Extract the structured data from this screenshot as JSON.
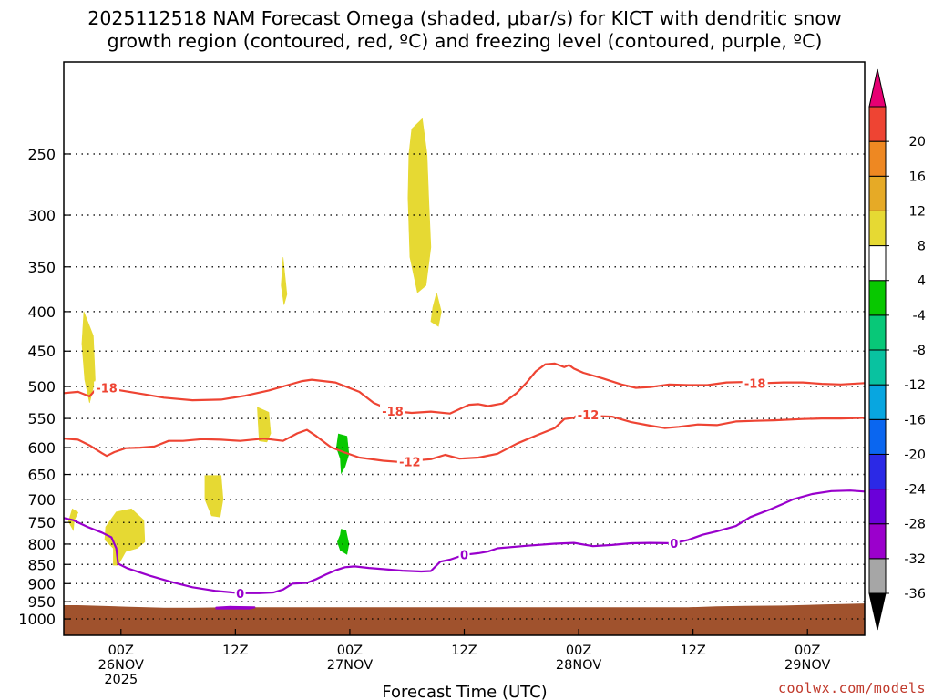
{
  "chart_data": {
    "type": "heatmap",
    "title_lines": [
      "2025112518 NAM Forecast Omega (shaded, μbar/s) for KICT with dendritic snow",
      "growth region (contoured, red, ºC) and freezing level (contoured, purple, ºC)"
    ],
    "xlabel": "Forecast Time (UTC)",
    "ylabel": "",
    "credit": "coolwx.com/models",
    "x_range_hours": [
      -3.5,
      80.5
    ],
    "y_range_hpa": [
      1050,
      190
    ],
    "y_ticks": [
      {
        "value": 250,
        "label": "250"
      },
      {
        "value": 300,
        "label": "300"
      },
      {
        "value": 350,
        "label": "350"
      },
      {
        "value": 400,
        "label": "400"
      },
      {
        "value": 450,
        "label": "450"
      },
      {
        "value": 500,
        "label": "500"
      },
      {
        "value": 550,
        "label": "550"
      },
      {
        "value": 600,
        "label": "600"
      },
      {
        "value": 650,
        "label": "650"
      },
      {
        "value": 700,
        "label": "700"
      },
      {
        "value": 750,
        "label": "750"
      },
      {
        "value": 800,
        "label": "800"
      },
      {
        "value": 850,
        "label": "850"
      },
      {
        "value": 900,
        "label": "900"
      },
      {
        "value": 950,
        "label": "950"
      },
      {
        "value": 1000,
        "label": "1000"
      }
    ],
    "x_ticks": [
      {
        "hour": 2.5,
        "lines": [
          "00Z",
          "26NOV",
          "2025"
        ]
      },
      {
        "hour": 14.5,
        "lines": [
          "12Z"
        ]
      },
      {
        "hour": 26.5,
        "lines": [
          "00Z",
          "27NOV"
        ]
      },
      {
        "hour": 38.5,
        "lines": [
          "12Z"
        ]
      },
      {
        "hour": 50.5,
        "lines": [
          "00Z",
          "28NOV"
        ]
      },
      {
        "hour": 62.5,
        "lines": [
          "12Z"
        ]
      },
      {
        "hour": 74.5,
        "lines": [
          "00Z",
          "29NOV"
        ]
      }
    ],
    "colorbar": {
      "levels": [
        -36,
        -32,
        -28,
        -24,
        -20,
        -16,
        -12,
        -8,
        -4,
        4,
        8,
        12,
        16,
        20
      ],
      "colors": [
        "#a6a6a6",
        "#9b00cc",
        "#6a00d9",
        "#2b29e6",
        "#0a66f0",
        "#08a6e0",
        "#09c2a0",
        "#08c878",
        "#08c800",
        "#ffffff",
        "#e6d933",
        "#e6aa26",
        "#ee8822",
        "#ee4433"
      ],
      "min_arrow_color": "#000000",
      "max_arrow_color": "#e60073"
    },
    "omega_regions": [
      {
        "color": "#e6d933",
        "value_range": [
          4,
          8
        ],
        "points": [
          [
            -1.4,
            400
          ],
          [
            -0.4,
            430
          ],
          [
            -0.2,
            490
          ],
          [
            -0.8,
            525
          ],
          [
            -1.3,
            490
          ],
          [
            -1.6,
            440
          ]
        ]
      },
      {
        "color": "#e6d933",
        "value_range": [
          4,
          8
        ],
        "points": [
          [
            -2.6,
            720
          ],
          [
            -2.0,
            728
          ],
          [
            -2.4,
            745
          ],
          [
            -2.5,
            768
          ],
          [
            -3.0,
            748
          ]
        ]
      },
      {
        "color": "#e6d933",
        "value_range": [
          4,
          8
        ],
        "points": [
          [
            0.9,
            760
          ],
          [
            2.0,
            727
          ],
          [
            3.6,
            720
          ],
          [
            4.9,
            745
          ],
          [
            5.0,
            795
          ],
          [
            4.2,
            810
          ],
          [
            3.0,
            818
          ],
          [
            2.2,
            852
          ],
          [
            1.7,
            852
          ],
          [
            1.7,
            810
          ],
          [
            0.8,
            790
          ]
        ]
      },
      {
        "color": "#e6d933",
        "value_range": [
          4,
          8
        ],
        "points": [
          [
            11.3,
            652
          ],
          [
            13.0,
            652
          ],
          [
            13.2,
            700
          ],
          [
            12.9,
            738
          ],
          [
            12.0,
            735
          ],
          [
            11.3,
            700
          ]
        ]
      },
      {
        "color": "#e6d933",
        "value_range": [
          4,
          8
        ],
        "points": [
          [
            16.8,
            532
          ],
          [
            18.0,
            540
          ],
          [
            18.2,
            575
          ],
          [
            17.8,
            590
          ],
          [
            17.0,
            588
          ]
        ]
      },
      {
        "color": "#e6d933",
        "value_range": [
          4,
          8
        ],
        "points": [
          [
            19.5,
            340
          ],
          [
            19.9,
            380
          ],
          [
            19.6,
            392
          ],
          [
            19.3,
            370
          ]
        ]
      },
      {
        "color": "#e6d933",
        "value_range": [
          4,
          8
        ],
        "points": [
          [
            33.0,
            232
          ],
          [
            34.1,
            225
          ],
          [
            34.6,
            250
          ],
          [
            34.8,
            290
          ],
          [
            35.0,
            330
          ],
          [
            34.5,
            370
          ],
          [
            33.6,
            378
          ],
          [
            32.8,
            340
          ],
          [
            32.6,
            285
          ],
          [
            32.7,
            250
          ]
        ]
      },
      {
        "color": "#e6d933",
        "value_range": [
          4,
          8
        ],
        "points": [
          [
            35.6,
            378
          ],
          [
            36.1,
            400
          ],
          [
            35.8,
            418
          ],
          [
            35.0,
            412
          ],
          [
            35.2,
            395
          ]
        ]
      },
      {
        "color": "#08c800",
        "value_range": [
          -8,
          -4
        ],
        "points": [
          [
            25.3,
            576
          ],
          [
            26.2,
            580
          ],
          [
            26.4,
            612
          ],
          [
            26.0,
            635
          ],
          [
            25.6,
            648
          ],
          [
            25.5,
            620
          ],
          [
            25.1,
            600
          ]
        ]
      },
      {
        "color": "#08c800",
        "value_range": [
          -8,
          -4
        ],
        "points": [
          [
            25.6,
            765
          ],
          [
            26.1,
            768
          ],
          [
            26.4,
            800
          ],
          [
            26.2,
            825
          ],
          [
            25.5,
            815
          ],
          [
            25.2,
            795
          ],
          [
            25.5,
            778
          ]
        ]
      }
    ],
    "terrain": {
      "color": "#a0522d",
      "points": [
        [
          -3.5,
          960
        ],
        [
          -2.0,
          960
        ],
        [
          3.0,
          964
        ],
        [
          7.0,
          967
        ],
        [
          10.0,
          967
        ],
        [
          14.0,
          966
        ],
        [
          30.0,
          966
        ],
        [
          50.0,
          966
        ],
        [
          58.0,
          966
        ],
        [
          62.0,
          966
        ],
        [
          65.0,
          963
        ],
        [
          68.0,
          962
        ],
        [
          72.0,
          961
        ],
        [
          76.0,
          958
        ],
        [
          80.5,
          955
        ],
        [
          80.5,
          1050
        ],
        [
          -3.5,
          1050
        ]
      ]
    },
    "dgz_contours": [
      {
        "level": -18,
        "label": "-18",
        "color": "#ee4433",
        "label_positions": [
          [
            1.0,
            502
          ],
          [
            31.0,
            538
          ],
          [
            69.0,
            495
          ]
        ],
        "points": [
          [
            -3.5,
            510
          ],
          [
            -2.0,
            508
          ],
          [
            -0.8,
            515
          ],
          [
            0.0,
            502
          ],
          [
            1.0,
            502
          ],
          [
            2.5,
            506
          ],
          [
            5.0,
            512
          ],
          [
            7.0,
            517
          ],
          [
            10.0,
            521
          ],
          [
            13.0,
            520
          ],
          [
            15.5,
            514
          ],
          [
            18.0,
            506
          ],
          [
            20.0,
            498
          ],
          [
            21.5,
            492
          ],
          [
            22.5,
            490
          ],
          [
            25.0,
            494
          ],
          [
            27.5,
            508
          ],
          [
            29.0,
            525
          ],
          [
            31.0,
            538
          ],
          [
            33.0,
            541
          ],
          [
            35.0,
            539
          ],
          [
            37.0,
            542
          ],
          [
            39.0,
            528
          ],
          [
            40.0,
            527
          ],
          [
            41.0,
            530
          ],
          [
            42.5,
            526
          ],
          [
            44.0,
            510
          ],
          [
            45.0,
            495
          ],
          [
            46.0,
            478
          ],
          [
            47.0,
            468
          ],
          [
            48.0,
            467
          ],
          [
            49.0,
            472
          ],
          [
            49.5,
            469
          ],
          [
            50.0,
            474
          ],
          [
            51.0,
            480
          ],
          [
            53.0,
            488
          ],
          [
            55.0,
            497
          ],
          [
            56.5,
            502
          ],
          [
            58.0,
            501
          ],
          [
            60.0,
            497
          ],
          [
            62.0,
            498
          ],
          [
            64.0,
            498
          ],
          [
            66.0,
            494
          ],
          [
            69.0,
            493
          ],
          [
            70.0,
            495
          ],
          [
            72.0,
            494
          ],
          [
            74.0,
            494
          ],
          [
            76.0,
            496
          ],
          [
            78.0,
            497
          ],
          [
            80.5,
            495
          ]
        ]
      },
      {
        "level": -12,
        "label": "-12",
        "color": "#ee4433",
        "label_positions": [
          [
            32.8,
            626
          ],
          [
            51.5,
            544
          ]
        ],
        "points": [
          [
            -3.5,
            584
          ],
          [
            -2.0,
            586
          ],
          [
            -0.8,
            596
          ],
          [
            0.5,
            610
          ],
          [
            1.0,
            615
          ],
          [
            1.8,
            608
          ],
          [
            3.0,
            601
          ],
          [
            4.5,
            600
          ],
          [
            6.0,
            598
          ],
          [
            7.5,
            588
          ],
          [
            9.0,
            588
          ],
          [
            11.0,
            585
          ],
          [
            13.0,
            586
          ],
          [
            15.0,
            588
          ],
          [
            17.5,
            584
          ],
          [
            19.5,
            588
          ],
          [
            21.0,
            575
          ],
          [
            22.0,
            569
          ],
          [
            23.0,
            580
          ],
          [
            24.5,
            599
          ],
          [
            26.0,
            609
          ],
          [
            27.5,
            618
          ],
          [
            30.0,
            624
          ],
          [
            31.5,
            626
          ],
          [
            35.0,
            621
          ],
          [
            36.5,
            613
          ],
          [
            38.0,
            620
          ],
          [
            40.0,
            618
          ],
          [
            42.0,
            611
          ],
          [
            44.0,
            593
          ],
          [
            46.0,
            579
          ],
          [
            48.0,
            566
          ],
          [
            49.0,
            551
          ],
          [
            50.0,
            549
          ],
          [
            50.5,
            542
          ],
          [
            52.0,
            546
          ],
          [
            54.0,
            547
          ],
          [
            56.0,
            556
          ],
          [
            58.0,
            562
          ],
          [
            59.5,
            566
          ],
          [
            61.0,
            564
          ],
          [
            63.0,
            560
          ],
          [
            65.0,
            561
          ],
          [
            67.0,
            555
          ],
          [
            69.0,
            554
          ],
          [
            71.0,
            553
          ],
          [
            74.0,
            551
          ],
          [
            76.0,
            550
          ],
          [
            78.0,
            550
          ],
          [
            80.5,
            549
          ]
        ]
      }
    ],
    "freezing_contours": [
      {
        "level": 0,
        "label": "0",
        "color": "#9900cc",
        "label_positions": [
          [
            15.0,
            926
          ],
          [
            38.5,
            825
          ],
          [
            60.5,
            798
          ]
        ],
        "points": [
          [
            -3.5,
            740
          ],
          [
            -2.5,
            745
          ],
          [
            -1.0,
            760
          ],
          [
            0.5,
            773
          ],
          [
            1.5,
            784
          ],
          [
            2.0,
            810
          ],
          [
            2.2,
            848
          ],
          [
            3.2,
            860
          ],
          [
            5.5,
            879
          ],
          [
            8.0,
            897
          ],
          [
            10.0,
            910
          ],
          [
            12.5,
            920
          ],
          [
            15.0,
            926
          ],
          [
            17.0,
            926
          ],
          [
            18.5,
            924
          ],
          [
            19.5,
            916
          ],
          [
            20.5,
            900
          ],
          [
            22.0,
            898
          ],
          [
            23.0,
            888
          ],
          [
            24.0,
            876
          ],
          [
            25.0,
            865
          ],
          [
            26.0,
            857
          ],
          [
            27.0,
            855
          ],
          [
            28.5,
            859
          ],
          [
            30.0,
            862
          ],
          [
            32.0,
            866
          ],
          [
            34.0,
            868
          ],
          [
            35.0,
            867
          ],
          [
            36.0,
            843
          ],
          [
            37.0,
            838
          ],
          [
            38.5,
            826
          ],
          [
            40.0,
            822
          ],
          [
            41.0,
            818
          ],
          [
            42.0,
            810
          ],
          [
            45.0,
            804
          ],
          [
            48.0,
            799
          ],
          [
            50.0,
            797
          ],
          [
            52.0,
            805
          ],
          [
            54.0,
            802
          ],
          [
            56.0,
            798
          ],
          [
            58.0,
            797
          ],
          [
            60.5,
            798
          ],
          [
            62.0,
            790
          ],
          [
            63.5,
            778
          ],
          [
            65.0,
            770
          ],
          [
            67.0,
            758
          ],
          [
            68.5,
            738
          ],
          [
            70.5,
            722
          ],
          [
            72.0,
            709
          ],
          [
            73.0,
            700
          ],
          [
            75.0,
            689
          ],
          [
            77.0,
            683
          ],
          [
            79.0,
            682
          ],
          [
            80.5,
            684
          ]
        ]
      },
      {
        "level": 0,
        "label": "",
        "color": "#9900cc",
        "label_positions": [],
        "points": [
          [
            12.5,
            967
          ],
          [
            14.0,
            965
          ],
          [
            16.5,
            966
          ],
          [
            16.0,
            969
          ],
          [
            12.5,
            969
          ]
        ]
      }
    ]
  }
}
